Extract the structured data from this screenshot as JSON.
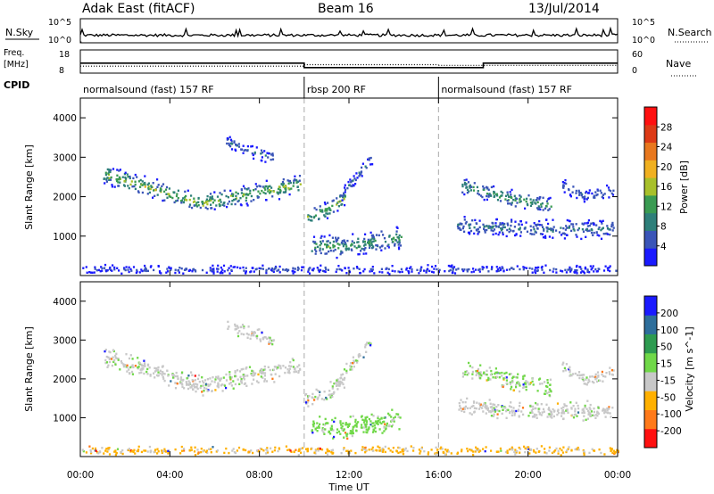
{
  "header": {
    "title": "Adak East (fitACF)",
    "beam": "Beam 16",
    "date": "13/Jul/2014"
  },
  "noise_panel": {
    "left_label": "N.Sky",
    "right_label": "N.Search",
    "left_ticks": [
      "10^5",
      "10^0"
    ],
    "right_ticks": [
      "10^5",
      "10^0"
    ]
  },
  "freq_panel": {
    "left_label_line1": "Freq.",
    "left_label_line2": "[MHz]",
    "right_label": "Nave",
    "left_ticks": [
      "18",
      "8"
    ],
    "right_ticks": [
      "60",
      "0"
    ],
    "freq_mhz": [
      {
        "start_hr": 0,
        "end_hr": 10,
        "value": 12.3
      },
      {
        "start_hr": 10,
        "end_hr": 18,
        "value": 10.4
      },
      {
        "start_hr": 18,
        "end_hr": 24,
        "value": 12.3
      }
    ],
    "nave": [
      {
        "start_hr": 0,
        "end_hr": 10,
        "value": 18
      },
      {
        "start_hr": 10,
        "end_hr": 16,
        "value": 22
      },
      {
        "start_hr": 16,
        "end_hr": 24,
        "value": 20
      }
    ]
  },
  "cpid": {
    "label": "CPID",
    "segments": [
      {
        "start_hr": 0,
        "end_hr": 10,
        "name": "normalsound (fast) 157 RF"
      },
      {
        "start_hr": 10,
        "end_hr": 16,
        "name": "rbsp 200 RF"
      },
      {
        "start_hr": 16,
        "end_hr": 24,
        "name": "normalsound (fast) 157 RF"
      }
    ]
  },
  "chart_data": [
    {
      "type": "heatmap",
      "panel": "power",
      "ylabel": "Slant Range [km]",
      "ylim": [
        0,
        4500
      ],
      "yticks": [
        "1000",
        "2000",
        "3000",
        "4000"
      ],
      "xlim": [
        0,
        24
      ],
      "colorbar_label": "Power [dB]",
      "colorbar_ticks": [
        "4",
        "8",
        "12",
        "16",
        "20",
        "24",
        "28"
      ],
      "colorbar_range": [
        0,
        30
      ],
      "colors": [
        "#1a1aff",
        "#3a55b8",
        "#2e7f7a",
        "#3a9b52",
        "#a8c02a",
        "#f0b020",
        "#e8781e",
        "#dd3a16",
        "#ff1010"
      ],
      "scatter_regions": [
        {
          "t0": 1.0,
          "t1": 9.8,
          "r_start": 2600,
          "r_mid": 1850,
          "r_end": 2350,
          "thickness": 280,
          "peak_db": 18
        },
        {
          "t0": 6.5,
          "t1": 8.6,
          "r_start": 3400,
          "r_mid": 3200,
          "r_end": 3000,
          "thickness": 200,
          "peak_db": 8
        },
        {
          "t0": 10.0,
          "t1": 11.8,
          "r_start": 1500,
          "r_mid": 1650,
          "r_end": 2000,
          "thickness": 250,
          "peak_db": 16
        },
        {
          "t0": 10.3,
          "t1": 14.3,
          "r_start": 750,
          "r_mid": 800,
          "r_end": 1000,
          "thickness": 330,
          "peak_db": 14
        },
        {
          "t0": 11.5,
          "t1": 13.0,
          "r_start": 2000,
          "r_mid": 2500,
          "r_end": 3000,
          "thickness": 200,
          "peak_db": 8
        },
        {
          "t0": 16.8,
          "t1": 23.8,
          "r_start": 1300,
          "r_mid": 1200,
          "r_end": 1200,
          "thickness": 260,
          "peak_db": 10
        },
        {
          "t0": 17.0,
          "t1": 21.0,
          "r_start": 2300,
          "r_mid": 2000,
          "r_end": 1800,
          "thickness": 250,
          "peak_db": 14
        },
        {
          "t0": 21.5,
          "t1": 23.8,
          "r_start": 2300,
          "r_mid": 2000,
          "r_end": 2200,
          "thickness": 200,
          "peak_db": 8
        },
        {
          "t0": 0.0,
          "t1": 24.0,
          "r_start": 180,
          "r_mid": 180,
          "r_end": 180,
          "thickness": 120,
          "peak_db": 6
        }
      ]
    },
    {
      "type": "heatmap",
      "panel": "velocity",
      "ylabel": "Slant Range [km]",
      "ylim": [
        0,
        4500
      ],
      "yticks": [
        "1000",
        "2000",
        "3000",
        "4000"
      ],
      "xlim": [
        0,
        24
      ],
      "colorbar_label": "Velocity [m s^-1]",
      "colorbar_ticks": [
        "-200",
        "-100",
        "-50",
        "-15",
        "15",
        "50",
        "100",
        "200"
      ],
      "colorbar_range": [
        -250,
        250
      ],
      "colors": [
        "#ff1010",
        "#ff7a1a",
        "#ffb000",
        "#c8c8c8",
        "#70d848",
        "#2e9b50",
        "#2e6e9b",
        "#1a1aff"
      ],
      "scatter_regions": [
        {
          "t0": 1.0,
          "t1": 9.8,
          "r_start": 2600,
          "r_mid": 1850,
          "r_end": 2350,
          "thickness": 280,
          "velocity": 0
        },
        {
          "t0": 6.5,
          "t1": 8.6,
          "r_start": 3400,
          "r_mid": 3200,
          "r_end": 3000,
          "thickness": 200,
          "velocity": 0
        },
        {
          "t0": 10.0,
          "t1": 11.8,
          "r_start": 1500,
          "r_mid": 1650,
          "r_end": 2000,
          "thickness": 250,
          "velocity": 0
        },
        {
          "t0": 10.3,
          "t1": 14.3,
          "r_start": 750,
          "r_mid": 800,
          "r_end": 1000,
          "thickness": 330,
          "velocity": 30
        },
        {
          "t0": 11.5,
          "t1": 13.0,
          "r_start": 2000,
          "r_mid": 2500,
          "r_end": 3000,
          "thickness": 200,
          "velocity": 0
        },
        {
          "t0": 16.8,
          "t1": 23.8,
          "r_start": 1300,
          "r_mid": 1200,
          "r_end": 1200,
          "thickness": 260,
          "velocity": 0
        },
        {
          "t0": 17.0,
          "t1": 21.0,
          "r_start": 2300,
          "r_mid": 2000,
          "r_end": 1800,
          "thickness": 250,
          "velocity": 20
        },
        {
          "t0": 21.5,
          "t1": 23.8,
          "r_start": 2300,
          "r_mid": 2000,
          "r_end": 2200,
          "thickness": 200,
          "velocity": 0
        },
        {
          "t0": 0.0,
          "t1": 24.0,
          "r_start": 180,
          "r_mid": 180,
          "r_end": 180,
          "thickness": 120,
          "velocity": -60
        }
      ]
    }
  ],
  "xaxis": {
    "label": "Time UT",
    "ticks": [
      "00:00",
      "04:00",
      "08:00",
      "12:00",
      "16:00",
      "20:00",
      "00:00"
    ],
    "dashed_at_hr": [
      10,
      16
    ]
  }
}
